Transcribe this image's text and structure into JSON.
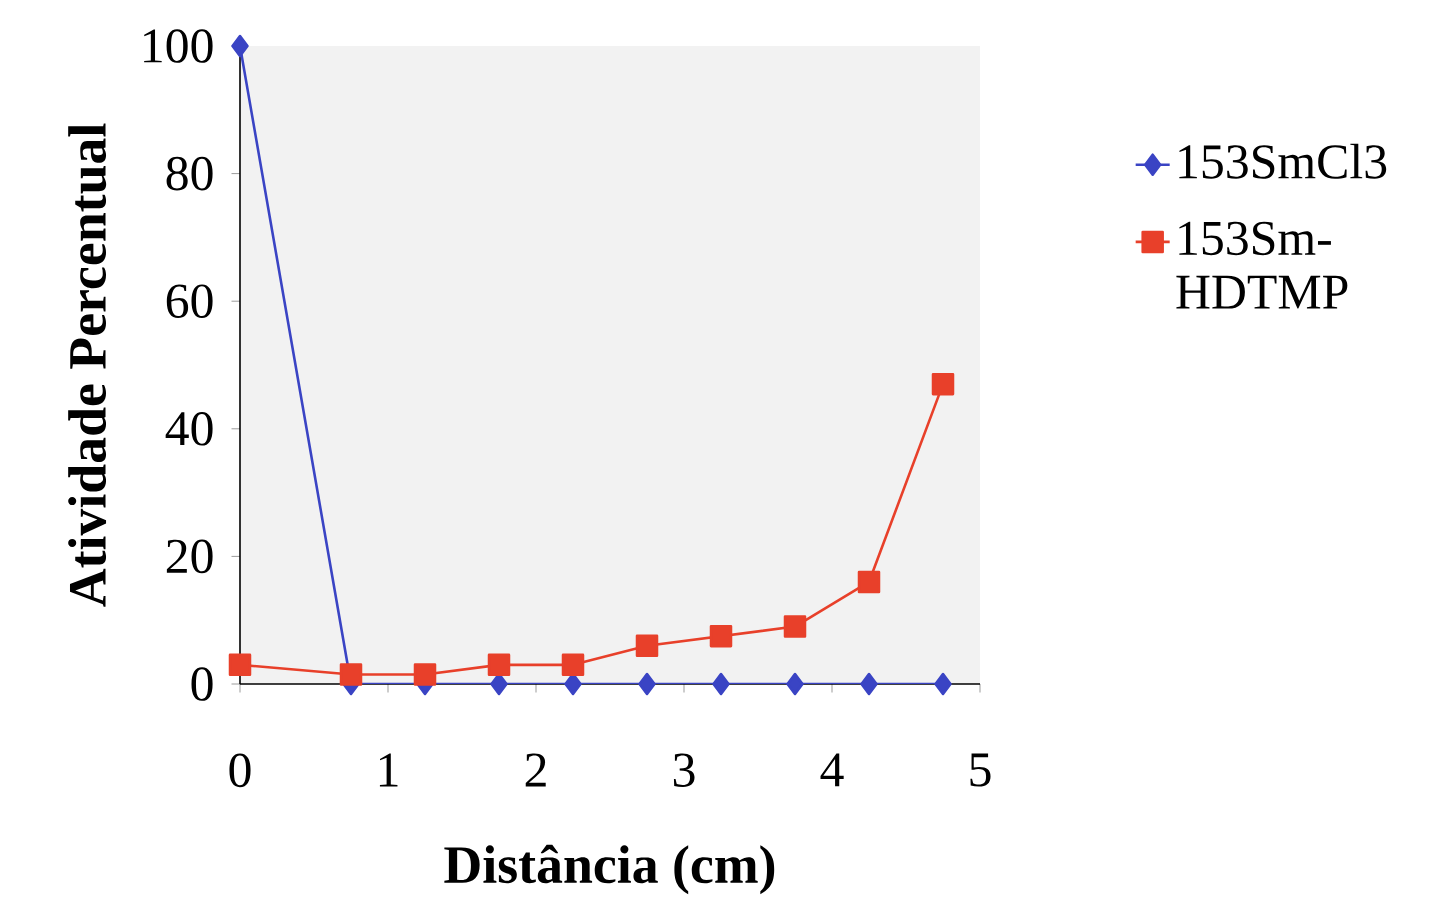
{
  "chart_data": {
    "type": "line",
    "xlabel": "Distância (cm)",
    "ylabel": "Atividade Percentual",
    "x": [
      0,
      0.75,
      1.25,
      1.75,
      2.25,
      2.75,
      3.25,
      3.75,
      4.25,
      4.75
    ],
    "series": [
      {
        "name": "153SmCl3",
        "color": "#3a44c4",
        "marker": "diamond",
        "values": [
          100,
          0,
          0,
          0,
          0,
          0,
          0,
          0,
          0,
          0
        ]
      },
      {
        "name": "153Sm-HDTMP",
        "color": "#e8402a",
        "marker": "square",
        "values": [
          3,
          1.5,
          1.5,
          3,
          3,
          6,
          7.5,
          9,
          16,
          47
        ]
      }
    ],
    "xlim": [
      0,
      5
    ],
    "xticks": [
      0,
      1,
      2,
      3,
      4,
      5
    ],
    "ylim": [
      0,
      100
    ],
    "yticks": [
      0,
      20,
      40,
      60,
      80,
      100
    ],
    "grid": false,
    "legend": "right"
  }
}
